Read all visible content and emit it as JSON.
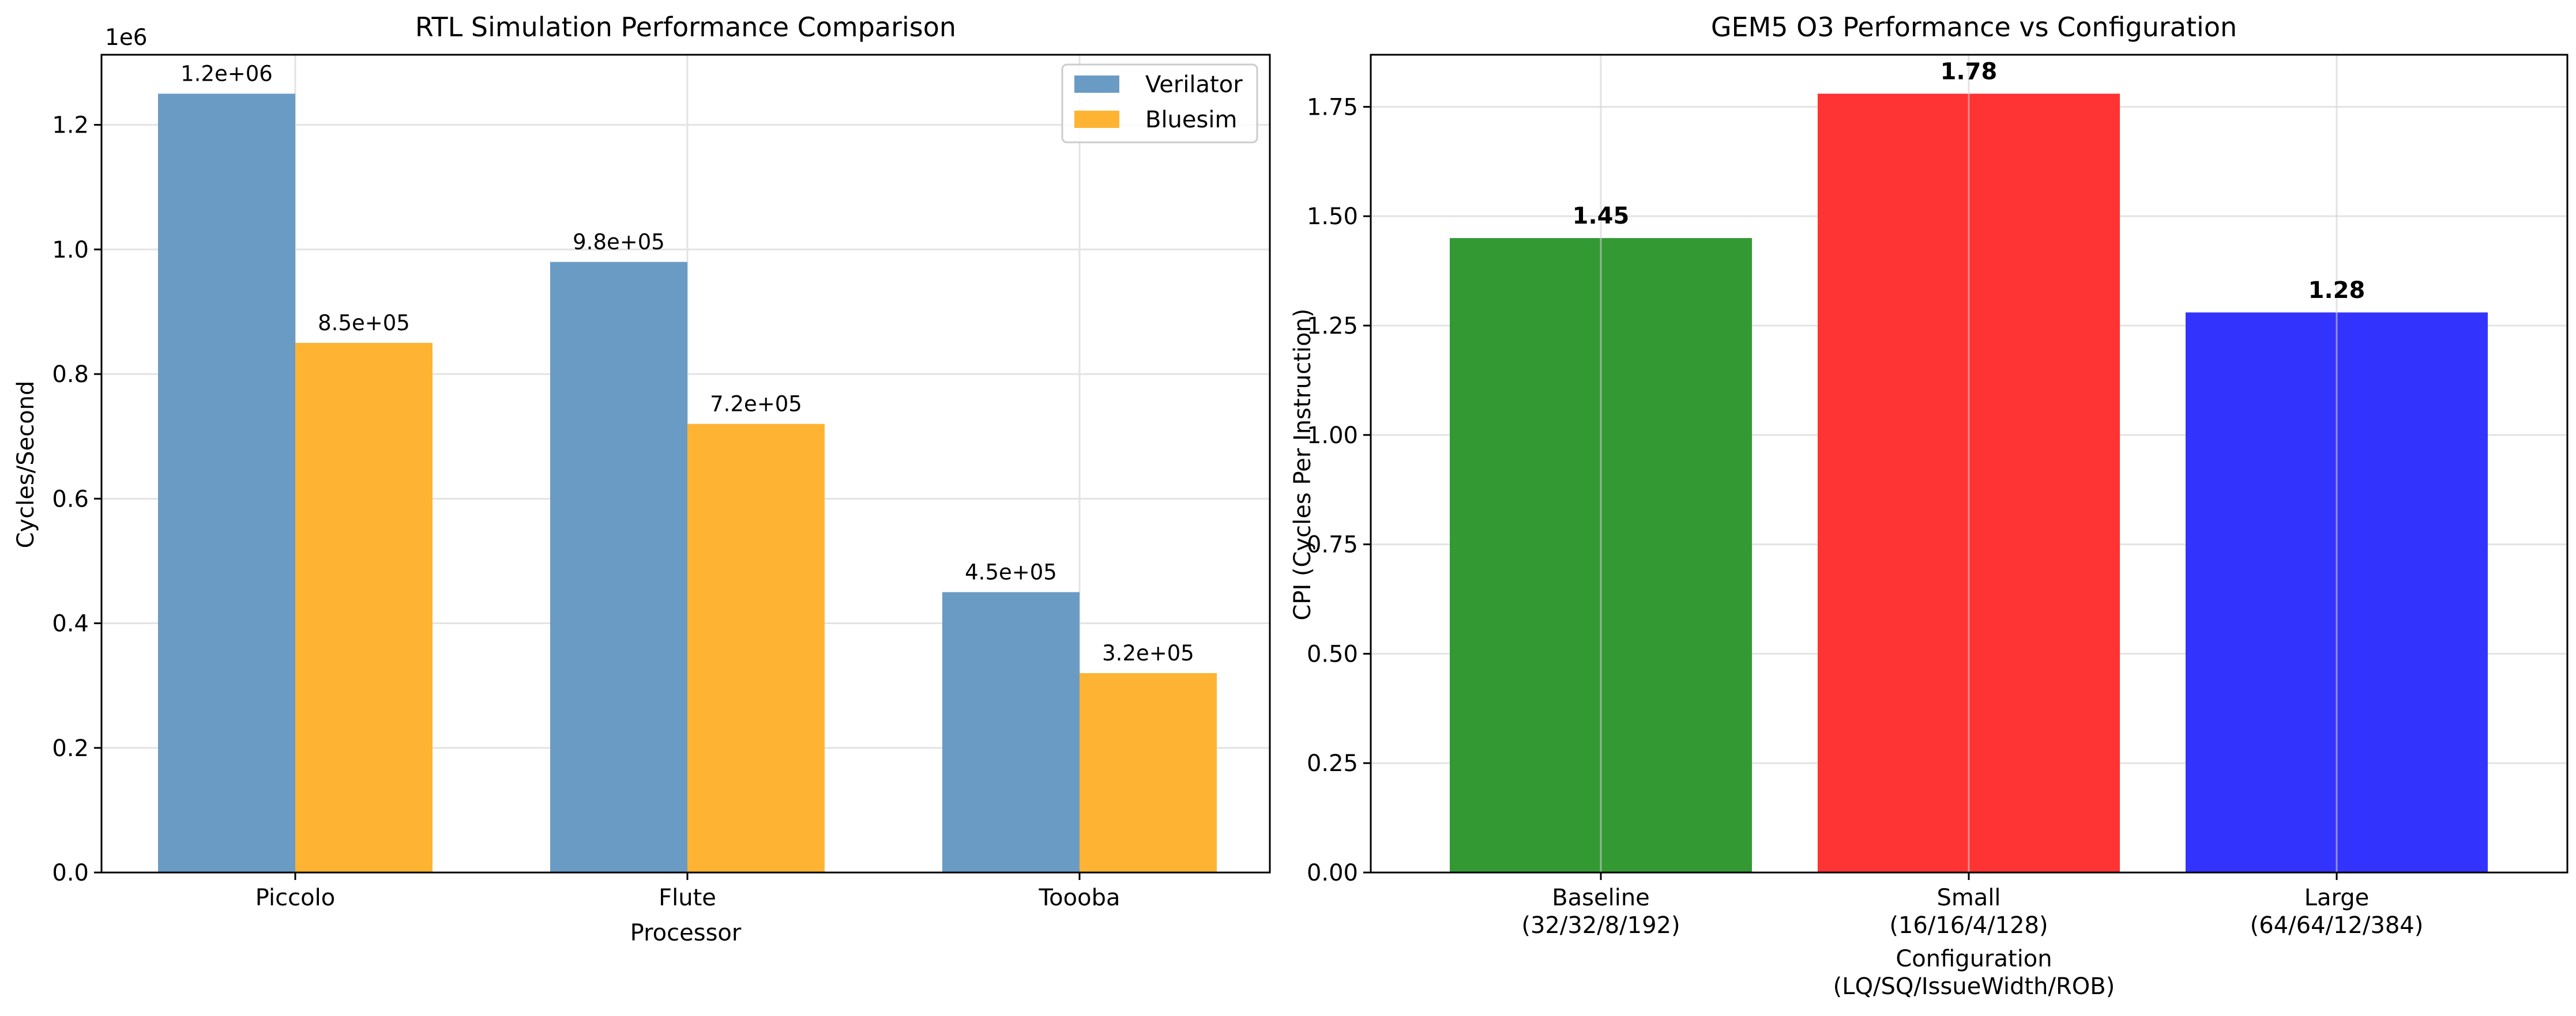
{
  "chart_data": [
    {
      "type": "bar",
      "title": "RTL Simulation Performance Comparison",
      "xlabel": "Processor",
      "ylabel": "Cycles/Second",
      "y_scale_label": "1e6",
      "categories": [
        "Piccolo",
        "Flute",
        "Toooba"
      ],
      "series": [
        {
          "name": "Verilator",
          "color": "#6a9bc4",
          "values": [
            1250000,
            980000,
            450000
          ],
          "labels": [
            "1.2e+06",
            "9.8e+05",
            "4.5e+05"
          ]
        },
        {
          "name": "Bluesim",
          "color": "#feb432",
          "values": [
            850000,
            720000,
            320000
          ],
          "labels": [
            "8.5e+05",
            "7.2e+05",
            "3.2e+05"
          ]
        }
      ],
      "ylim": [
        0,
        1312500
      ],
      "y_ticks": [
        0,
        200000,
        400000,
        600000,
        800000,
        1000000,
        1200000
      ],
      "y_tick_labels": [
        "0.0",
        "0.2",
        "0.4",
        "0.6",
        "0.8",
        "1.0",
        "1.2"
      ],
      "grid": true,
      "legend": "top-right"
    },
    {
      "type": "bar",
      "title": "GEM5 O3 Performance vs Configuration",
      "xlabel": [
        "Configuration",
        "(LQ/SQ/IssueWidth/ROB)"
      ],
      "ylabel": "CPI (Cycles Per Instruction)",
      "categories": [
        [
          "Baseline",
          "(32/32/8/192)"
        ],
        [
          "Small",
          "(16/16/4/128)"
        ],
        [
          "Large",
          "(64/64/12/384)"
        ]
      ],
      "values": [
        1.45,
        1.78,
        1.28
      ],
      "value_labels": [
        "1.45",
        "1.78",
        "1.28"
      ],
      "colors": [
        "#339933",
        "#fe3333",
        "#3333fe"
      ],
      "ylim": [
        0,
        1.869
      ],
      "y_ticks": [
        0,
        0.25,
        0.5,
        0.75,
        1.0,
        1.25,
        1.5,
        1.75
      ],
      "y_tick_labels": [
        "0.00",
        "0.25",
        "0.50",
        "0.75",
        "1.00",
        "1.25",
        "1.50",
        "1.75"
      ],
      "grid": true
    }
  ]
}
